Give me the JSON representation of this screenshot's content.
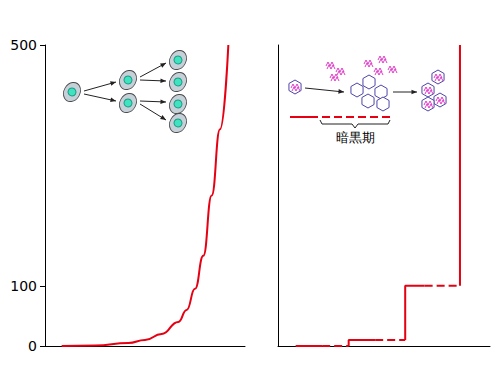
{
  "chart_data": [
    {
      "type": "line",
      "x": [
        1,
        3,
        5,
        6,
        7,
        8,
        8.5,
        9,
        9.5,
        10,
        10.5,
        11
      ],
      "values": [
        0,
        1,
        5,
        10,
        20,
        40,
        60,
        95,
        150,
        250,
        360,
        500
      ],
      "color": "#e60012",
      "xlim": [
        0,
        12
      ],
      "ylim": [
        0,
        500
      ],
      "yticks": [
        0,
        100,
        500
      ],
      "grid": false,
      "tick_labels": "y",
      "marker": "none"
    },
    {
      "type": "line",
      "x": [
        1,
        2.5,
        4,
        4,
        4,
        5.5,
        7.2,
        7.2,
        7.2,
        8.3,
        10.3,
        10.3,
        10.3
      ],
      "series": [
        {
          "color": "#e60012",
          "line_style": "solid",
          "values": [
            0,
            0,
            null,
            0,
            10,
            10,
            null,
            10,
            100,
            100,
            null,
            100,
            500
          ]
        },
        {
          "color": "#e60012",
          "line_style": "dashed",
          "values": [
            null,
            0,
            0,
            null,
            null,
            10,
            10,
            null,
            null,
            100,
            100,
            null,
            null
          ]
        }
      ],
      "xlim": [
        0,
        12
      ],
      "ylim": [
        0,
        500
      ],
      "grid": false,
      "tick_labels": false,
      "marker": "none",
      "annotations": [
        "暗黒期"
      ]
    }
  ]
}
